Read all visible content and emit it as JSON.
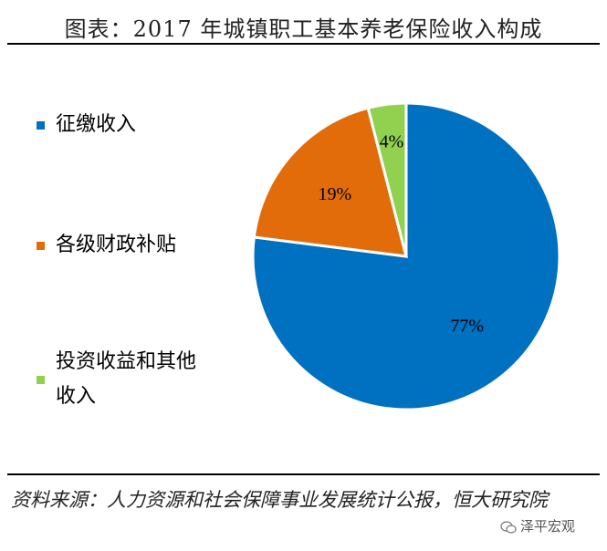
{
  "chart_data": {
    "type": "pie",
    "title": "图表：2017 年城镇职工基本养老保险收入构成",
    "slices": [
      {
        "label": "征缴收入",
        "value": 77,
        "display": "77%",
        "color": "#0070c0"
      },
      {
        "label": "各级财政补贴",
        "value": 19,
        "display": "19%",
        "color": "#e36c0a"
      },
      {
        "label": "投资收益和其他收入",
        "value": 4,
        "display": "4%",
        "color": "#92d050"
      }
    ],
    "legend_position": "left"
  },
  "source": "资料来源：人力资源和社会保障事业发展统计公报，恒大研究院",
  "watermark": {
    "text": "泽平宏观",
    "icon": "wechat-icon"
  }
}
